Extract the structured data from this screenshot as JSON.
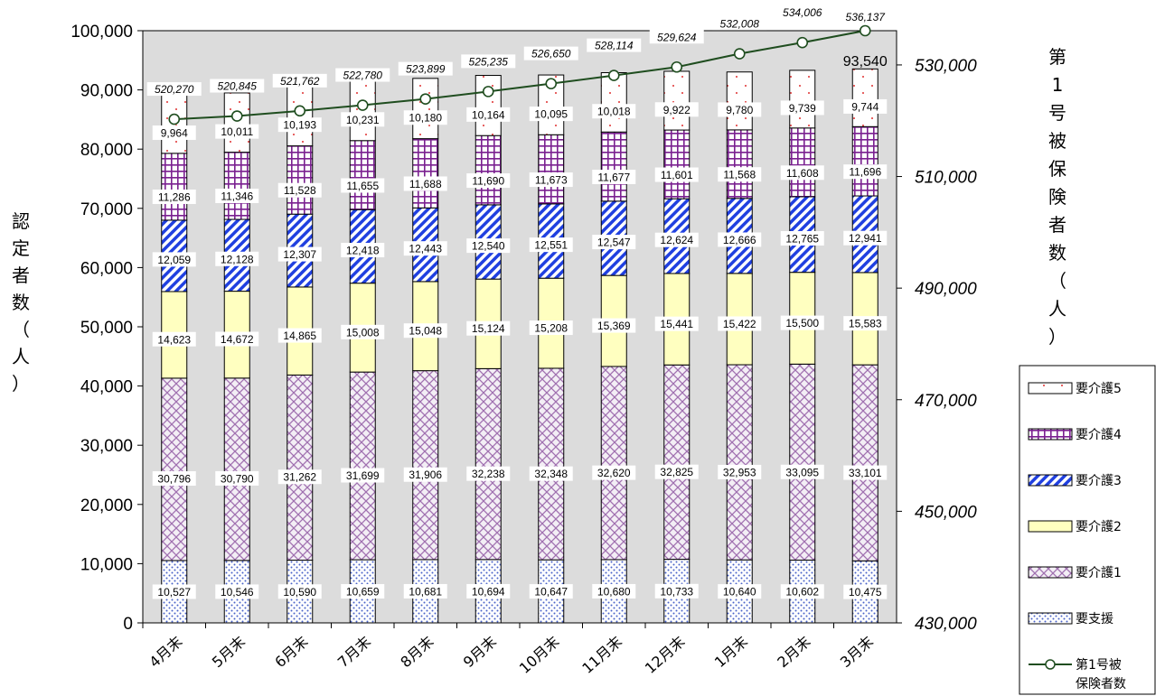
{
  "chart_data": {
    "type": "bar",
    "stacked": true,
    "categories": [
      "4月末",
      "5月末",
      "6月末",
      "7月末",
      "8月末",
      "9月末",
      "10月末",
      "11月末",
      "12月末",
      "1月末",
      "2月末",
      "3月末"
    ],
    "ylabel": "認定者数（人）",
    "y2label": "第1号被保険者数（人）",
    "ylim": [
      0,
      100000
    ],
    "y2lim": [
      430000,
      536137
    ],
    "yticks": [
      "0",
      "10,000",
      "20,000",
      "30,000",
      "40,000",
      "50,000",
      "60,000",
      "70,000",
      "80,000",
      "90,000",
      "100,000"
    ],
    "y2ticks": [
      "430,000",
      "450,000",
      "470,000",
      "490,000",
      "510,000",
      "530,000"
    ],
    "grid": false,
    "legend_position": "right",
    "series": [
      {
        "name": "要支援",
        "values": [
          10527,
          10546,
          10590,
          10659,
          10681,
          10694,
          10647,
          10680,
          10733,
          10640,
          10602,
          10475
        ],
        "labels": [
          "10,527",
          "10,546",
          "10,590",
          "10,659",
          "10,681",
          "10,694",
          "10,647",
          "10,680",
          "10,733",
          "10,640",
          "10,602",
          "10,475"
        ]
      },
      {
        "name": "要介護1",
        "values": [
          30796,
          30790,
          31262,
          31699,
          31906,
          32238,
          32348,
          32620,
          32825,
          32953,
          33095,
          33101
        ],
        "labels": [
          "30,796",
          "30,790",
          "31,262",
          "31,699",
          "31,906",
          "32,238",
          "32,348",
          "32,620",
          "32,825",
          "32,953",
          "33,095",
          "33,101"
        ]
      },
      {
        "name": "要介護2",
        "values": [
          14623,
          14672,
          14865,
          15008,
          15048,
          15124,
          15208,
          15369,
          15441,
          15422,
          15500,
          15583
        ],
        "labels": [
          "14,623",
          "14,672",
          "14,865",
          "15,008",
          "15,048",
          "15,124",
          "15,208",
          "15,369",
          "15,441",
          "15,422",
          "15,500",
          "15,583"
        ]
      },
      {
        "name": "要介護3",
        "values": [
          12059,
          12128,
          12307,
          12418,
          12443,
          12540,
          12551,
          12547,
          12624,
          12666,
          12765,
          12941
        ],
        "labels": [
          "12,059",
          "12,128",
          "12,307",
          "12,418",
          "12,443",
          "12,540",
          "12,551",
          "12,547",
          "12,624",
          "12,666",
          "12,765",
          "12,941"
        ]
      },
      {
        "name": "要介護4",
        "values": [
          11286,
          11346,
          11528,
          11655,
          11688,
          11690,
          11673,
          11677,
          11601,
          11568,
          11608,
          11696
        ],
        "labels": [
          "11,286",
          "11,346",
          "11,528",
          "11,655",
          "11,688",
          "11,690",
          "11,673",
          "11,677",
          "11,601",
          "11,568",
          "11,608",
          "11,696"
        ]
      },
      {
        "name": "要介護5",
        "values": [
          9964,
          10011,
          10193,
          10231,
          10180,
          10164,
          10095,
          10018,
          9922,
          9780,
          9739,
          9744
        ],
        "labels": [
          "9,964",
          "10,011",
          "10,193",
          "10,231",
          "10,180",
          "10,164",
          "10,095",
          "10,018",
          "9,922",
          "9,780",
          "9,739",
          "9,744"
        ]
      }
    ],
    "line_series": {
      "name": "第1号被保険者数",
      "axis": "right",
      "values": [
        520270,
        520845,
        521762,
        522780,
        523899,
        525235,
        526650,
        528114,
        529624,
        532008,
        534006,
        536137
      ],
      "labels": [
        "520,270",
        "520,845",
        "521,762",
        "522,780",
        "523,899",
        "525,235",
        "526,650",
        "528,114",
        "529,624",
        "532,008",
        "534,006",
        "536,137"
      ]
    },
    "last_total_label": "93,540"
  },
  "legend": {
    "items": [
      {
        "key": "s5",
        "label": "要介護5"
      },
      {
        "key": "s4",
        "label": "要介護4"
      },
      {
        "key": "s3",
        "label": "要介護3"
      },
      {
        "key": "s2",
        "label": "要介護2"
      },
      {
        "key": "s1",
        "label": "要介護1"
      },
      {
        "key": "s0",
        "label": "要支援"
      }
    ],
    "line_label_1": "第1号被",
    "line_label_2": "保険者数"
  },
  "colors": {
    "plot_bg": "#dcdcdc",
    "line": "#1f4d1f",
    "s0_dot": "#4a63c8",
    "s1_hatch": "#a070b0",
    "s2_fill": "#ffffc0",
    "s3_hatch": "#2040e0",
    "s4_grid": "#7a2090",
    "s5_dot": "#e03030"
  }
}
